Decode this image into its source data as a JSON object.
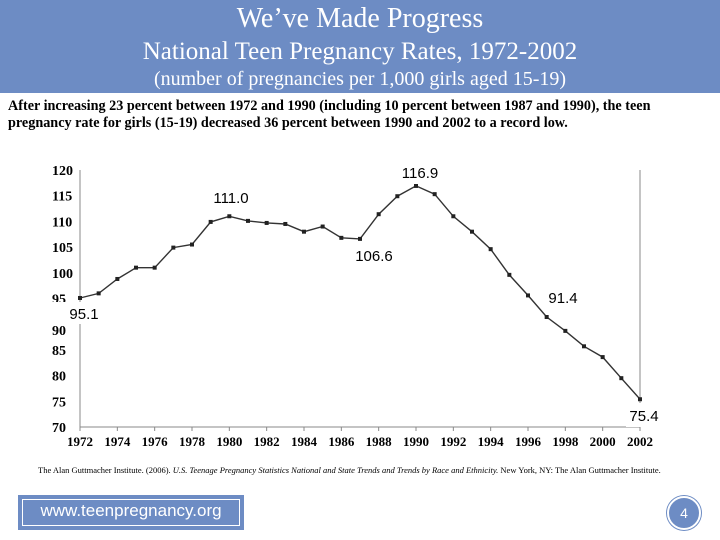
{
  "header": {
    "title": "We’ve Made Progress",
    "subtitle": "National Teen Pregnancy Rates, 1972-2002",
    "note": "(number of pregnancies per 1,000 girls aged 15-19)"
  },
  "summary": "After increasing 23 percent between 1972 and 1990 (including 10 percent between 1987 and 1990), the teen pregnancy rate for girls (15-19) decreased 36 percent between 1990 and 2002 to a record low.",
  "citation": {
    "prefix": "The Alan Guttmacher Institute. (2006).",
    "title": "U.S. Teenage Pregnancy Statistics National and State Trends and Trends by Race and Ethnicity.",
    "suffix": "New York, NY: The Alan Guttmacher Institute."
  },
  "footer": {
    "url": "www.teenpregnancy.org",
    "page_number": "4"
  },
  "colors": {
    "header_bg": "#6d8cc4",
    "line": "#333333",
    "text": "#000000"
  },
  "chart_data": {
    "type": "line",
    "title": "",
    "xlabel": "",
    "ylabel": "",
    "xlim": [
      1972,
      2002
    ],
    "ylim": [
      70,
      120
    ],
    "y_ticks": [
      70,
      75,
      80,
      85,
      90,
      95,
      100,
      105,
      110,
      115,
      120
    ],
    "x_ticks": [
      1972,
      1974,
      1976,
      1978,
      1980,
      1982,
      1984,
      1986,
      1988,
      1990,
      1992,
      1994,
      1996,
      1998,
      2000,
      2002
    ],
    "grid": false,
    "series": [
      {
        "x": [
          1972,
          1973,
          1974,
          1975,
          1976,
          1977,
          1978,
          1979,
          1980,
          1981,
          1982,
          1983,
          1984,
          1985,
          1986,
          1987,
          1988,
          1989,
          1990,
          1991,
          1992,
          1993,
          1994,
          1995,
          1996,
          1997,
          1998,
          1999,
          2000,
          2001,
          2002
        ],
        "values": [
          95.1,
          96.0,
          98.8,
          101.0,
          101.0,
          104.9,
          105.5,
          109.9,
          111.0,
          110.1,
          109.7,
          109.5,
          108.0,
          109.0,
          106.8,
          106.6,
          111.4,
          114.9,
          116.9,
          115.3,
          111.0,
          108.0,
          104.6,
          99.6,
          95.6,
          91.4,
          88.7,
          85.7,
          83.6,
          79.5,
          75.4
        ]
      }
    ],
    "annotations": [
      {
        "label": "116.9"
      },
      {
        "label": "111.0"
      },
      {
        "label": "106.6"
      },
      {
        "label": "95.1"
      },
      {
        "label": "91.4"
      },
      {
        "label": "75.4"
      }
    ]
  }
}
